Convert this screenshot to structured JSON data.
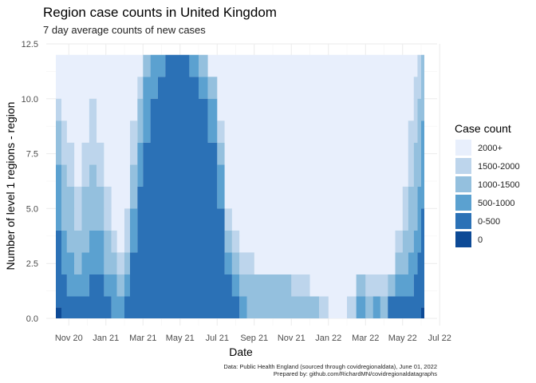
{
  "chart_data": {
    "type": "area",
    "title": "Region case counts in United Kingdom",
    "subtitle": "7 day average counts of new cases",
    "xlabel": "Date",
    "ylabel": "Number of level 1 regions - region",
    "caption_lines": [
      "Data: Public Health England (sourced through covidregionaldata), June 01, 2022",
      "Prepared by: github.com/RichardMN/covidregionaldatagraphs"
    ],
    "x_ticks": [
      {
        "label": "Nov 20",
        "month": 2
      },
      {
        "label": "Jan 21",
        "month": 4
      },
      {
        "label": "Mar 21",
        "month": 6
      },
      {
        "label": "May 21",
        "month": 8
      },
      {
        "label": "Jul 21",
        "month": 10
      },
      {
        "label": "Sep 21",
        "month": 12
      },
      {
        "label": "Nov 21",
        "month": 14
      },
      {
        "label": "Jan 22",
        "month": 16
      },
      {
        "label": "Mar 22",
        "month": 18
      },
      {
        "label": "May 22",
        "month": 20
      },
      {
        "label": "Jul 22",
        "month": 22
      }
    ],
    "xlim_month": [
      1.3,
      21.0
    ],
    "y_ticks": [
      "0.0",
      "2.5",
      "5.0",
      "7.5",
      "10.0",
      "12.5"
    ],
    "ylim": [
      0,
      12.5
    ],
    "total_regions": 12,
    "legend": {
      "title": "Case count",
      "position": "right",
      "entries": [
        {
          "label": "2000+",
          "color": "#e8effc"
        },
        {
          "label": "1500-2000",
          "color": "#bdd5ec"
        },
        {
          "label": "1000-1500",
          "color": "#94c0de"
        },
        {
          "label": "500-1000",
          "color": "#5ba1d0"
        },
        {
          "label": "0-500",
          "color": "#2b71b6"
        },
        {
          "label": "0",
          "color": "#0d4a96"
        }
      ]
    },
    "series_note": "cumulative stacked counts from bottom: [0, 0-500, 500-1000, 1000-1500, 1500-2000]; 2000+ fills to 12",
    "x_month": [
      1.3,
      1.6,
      1.9,
      2.3,
      2.7,
      3.1,
      3.5,
      3.9,
      4.3,
      4.6,
      5.0,
      5.3,
      5.7,
      6.0,
      6.4,
      6.8,
      7.2,
      7.6,
      8.0,
      8.5,
      9.0,
      9.5,
      10.0,
      10.4,
      10.8,
      11.2,
      11.6,
      12.0,
      12.5,
      13.0,
      13.5,
      14.0,
      14.5,
      15.0,
      15.5,
      16.0,
      16.5,
      17.0,
      17.5,
      18.0,
      18.4,
      18.8,
      19.2,
      19.6,
      20.0,
      20.3,
      20.6,
      20.8,
      21.0
    ],
    "cumulative": [
      [
        0.5,
        4,
        7,
        9,
        10
      ],
      [
        0,
        2,
        4,
        7,
        9
      ],
      [
        0,
        1,
        3,
        6,
        8
      ],
      [
        0,
        1,
        2,
        4,
        6
      ],
      [
        0,
        1,
        3,
        6,
        8
      ],
      [
        0,
        2,
        4,
        7,
        10
      ],
      [
        0,
        2,
        4,
        6,
        8
      ],
      [
        0,
        1,
        2,
        4,
        6
      ],
      [
        0,
        0,
        2,
        3,
        4
      ],
      [
        0,
        0,
        1,
        2,
        3
      ],
      [
        0,
        1,
        2,
        3,
        5
      ],
      [
        0,
        3,
        5,
        7,
        9
      ],
      [
        0,
        6,
        8,
        10,
        11
      ],
      [
        0,
        8,
        11,
        12,
        12
      ],
      [
        0,
        10,
        12,
        12,
        12
      ],
      [
        0,
        11,
        12,
        12,
        12
      ],
      [
        0,
        12,
        12,
        12,
        12
      ],
      [
        0,
        12,
        12,
        12,
        12
      ],
      [
        0,
        12,
        12,
        12,
        12
      ],
      [
        0,
        11,
        12,
        12,
        12
      ],
      [
        0,
        10,
        11,
        12,
        12
      ],
      [
        0,
        8,
        10,
        11,
        11
      ],
      [
        0,
        5,
        7,
        8,
        9
      ],
      [
        0,
        2,
        3,
        4,
        5
      ],
      [
        0,
        1,
        2,
        3,
        4
      ],
      [
        0,
        0,
        1,
        2,
        3
      ],
      [
        0,
        0,
        0,
        2,
        3
      ],
      [
        0,
        0,
        0,
        2,
        2
      ],
      [
        0,
        0,
        0,
        2,
        2
      ],
      [
        0,
        0,
        0,
        2,
        2
      ],
      [
        0,
        0,
        0,
        2,
        2
      ],
      [
        0,
        0,
        0,
        1,
        2
      ],
      [
        0,
        0,
        0,
        1,
        2
      ],
      [
        0,
        0,
        0,
        1,
        1
      ],
      [
        0,
        0,
        0,
        0,
        1
      ],
      [
        0,
        0,
        0,
        0,
        0
      ],
      [
        0,
        0,
        0,
        0,
        0
      ],
      [
        0,
        0,
        0,
        0,
        1
      ],
      [
        0,
        0,
        1,
        2,
        2
      ],
      [
        0,
        0,
        0,
        1,
        2
      ],
      [
        0,
        0,
        1,
        1,
        2
      ],
      [
        0,
        0,
        0,
        1,
        2
      ],
      [
        0,
        1,
        1,
        2,
        2
      ],
      [
        0,
        1,
        2,
        3,
        4
      ],
      [
        0,
        1,
        2,
        4,
        6
      ],
      [
        0,
        1,
        3,
        6,
        9
      ],
      [
        0,
        2,
        4,
        8,
        11
      ],
      [
        0,
        3,
        6,
        10,
        12
      ],
      [
        0.5,
        5,
        9,
        12,
        12
      ]
    ]
  }
}
